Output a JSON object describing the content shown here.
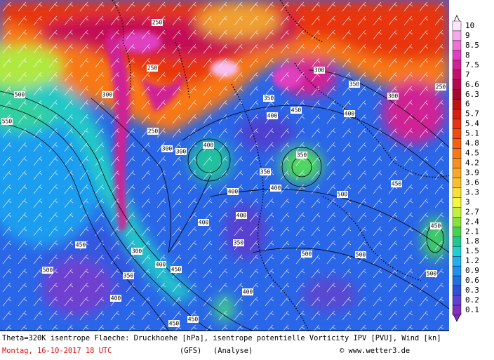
{
  "map": {
    "colorbar": {
      "levels": [
        {
          "label": "10",
          "color": "#ffe4ff"
        },
        {
          "label": "9",
          "color": "#f8a8ec"
        },
        {
          "label": "8.5",
          "color": "#f070d8"
        },
        {
          "label": "8",
          "color": "#e040c0"
        },
        {
          "label": "7.5",
          "color": "#d02094"
        },
        {
          "label": "7",
          "color": "#c4106c"
        },
        {
          "label": "6.6",
          "color": "#b40850"
        },
        {
          "label": "6.3",
          "color": "#a80830"
        },
        {
          "label": "6",
          "color": "#c01414"
        },
        {
          "label": "5.7",
          "color": "#d82010"
        },
        {
          "label": "5.4",
          "color": "#e83410"
        },
        {
          "label": "5.1",
          "color": "#f04a10"
        },
        {
          "label": "4.8",
          "color": "#f86010"
        },
        {
          "label": "4.5",
          "color": "#f87818"
        },
        {
          "label": "4.2",
          "color": "#f89020"
        },
        {
          "label": "3.9",
          "color": "#f8a828"
        },
        {
          "label": "3.6",
          "color": "#f8c030"
        },
        {
          "label": "3.3",
          "color": "#f8e038"
        },
        {
          "label": "3",
          "color": "#f0f840"
        },
        {
          "label": "2.7",
          "color": "#c0f040"
        },
        {
          "label": "2.4",
          "color": "#88e040"
        },
        {
          "label": "2.1",
          "color": "#48d050"
        },
        {
          "label": "1.8",
          "color": "#20c890"
        },
        {
          "label": "1.5",
          "color": "#20d0d0"
        },
        {
          "label": "1.2",
          "color": "#20b0f0"
        },
        {
          "label": "0.9",
          "color": "#2090f0"
        },
        {
          "label": "0.6",
          "color": "#2070e0"
        },
        {
          "label": "0.3",
          "color": "#3050d8"
        },
        {
          "label": "0.2",
          "color": "#6040d0"
        },
        {
          "label": "0.1",
          "color": "#8030c0"
        }
      ]
    },
    "contour_labels": [
      "250",
      "250",
      "300",
      "350",
      "250",
      "300",
      "300",
      "400",
      "400",
      "450",
      "300",
      "350",
      "300",
      "250",
      "400",
      "350",
      "350",
      "400",
      "400",
      "400",
      "450",
      "500",
      "300",
      "350",
      "400",
      "450",
      "400",
      "450",
      "450",
      "500",
      "500",
      "500",
      "450",
      "450",
      "500",
      "550",
      "500",
      "400",
      "350",
      "400"
    ]
  },
  "caption": {
    "description": "Theta=320K isentrope Flaeche: Druckhoehe [hPa], isentrope potentielle Vorticity IPV [PVU], Wind [kn]",
    "date": "Montag, 16-10-2017  18 UTC",
    "model": "(GFS)",
    "run": "(Analyse)",
    "credit": "© www.wetter3.de"
  }
}
